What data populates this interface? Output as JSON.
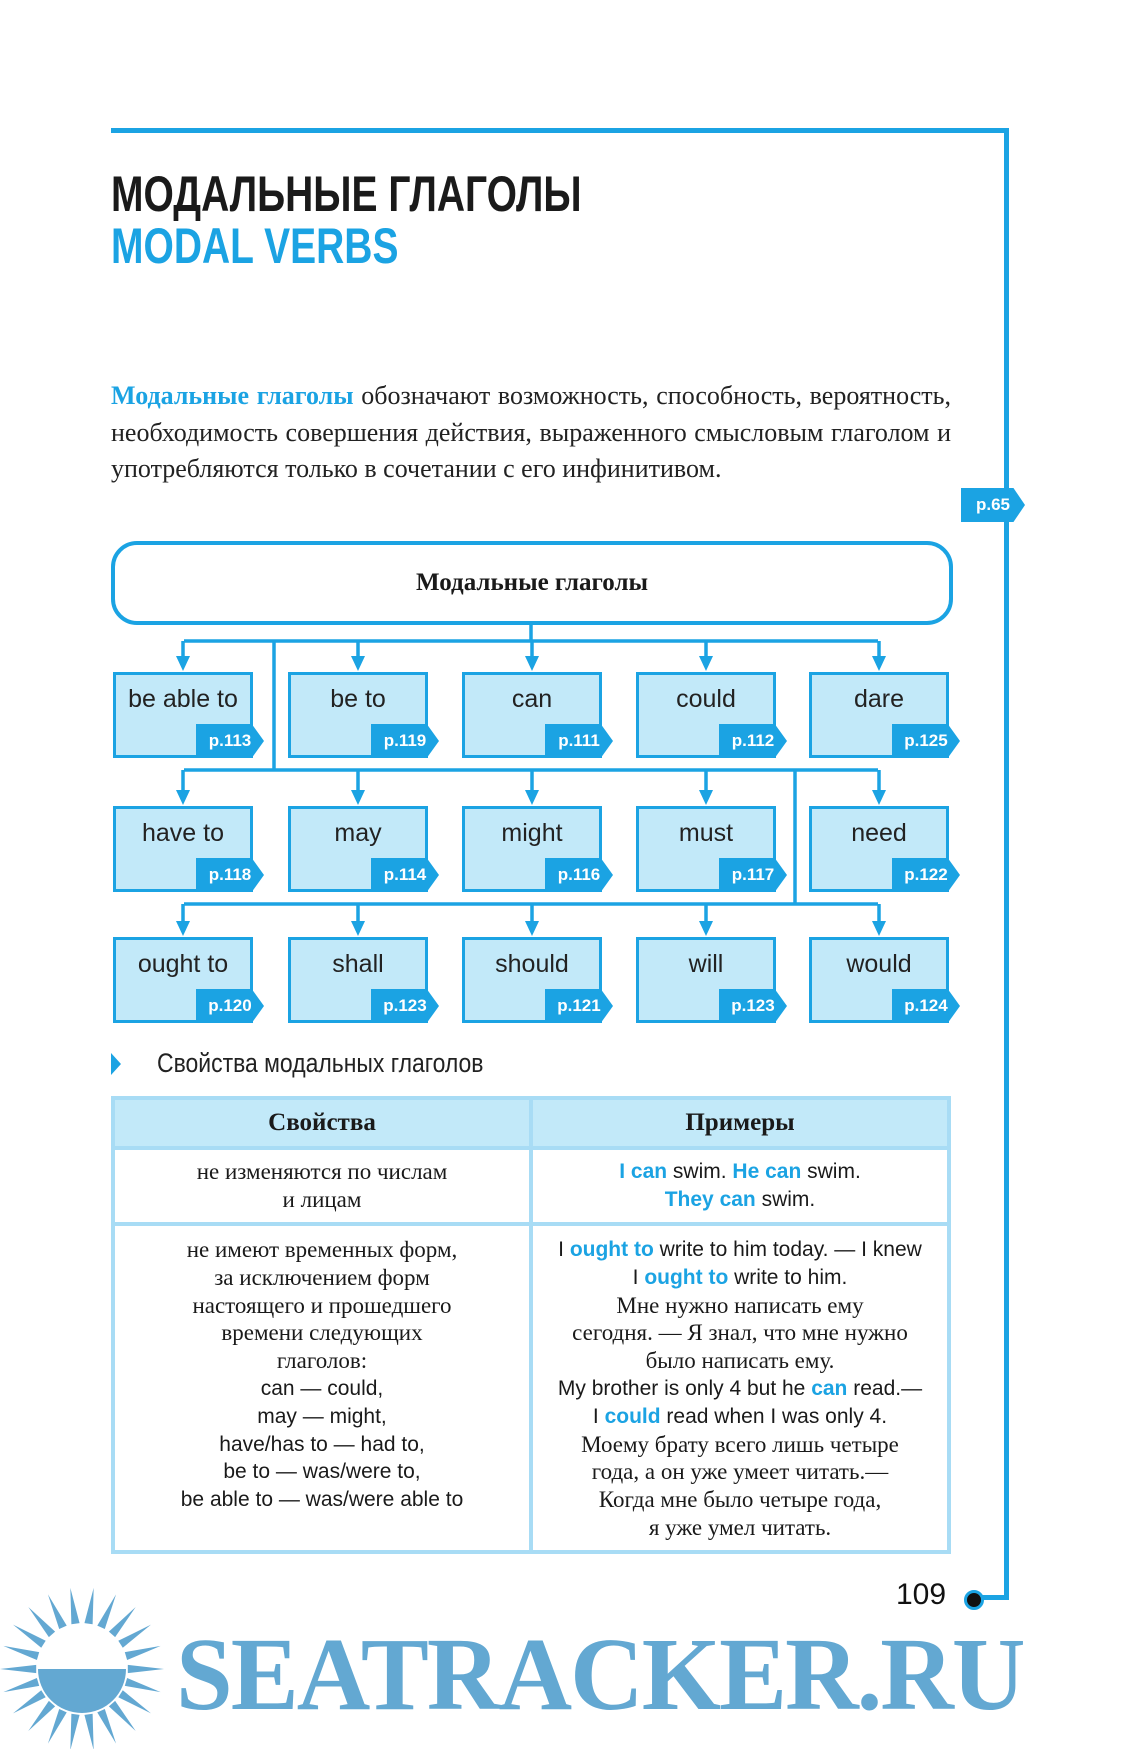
{
  "colors": {
    "accent": "#1ba3e3",
    "box_fill": "#c2e9f9",
    "table_border": "#a8dcf5",
    "watermark": "#63a8d2"
  },
  "title": {
    "ru": "МОДАЛЬНЫЕ ГЛАГОЛЫ",
    "en": "MODAL VERBS"
  },
  "intro": {
    "highlight": "Модальные глаголы",
    "text": " обозначают возможность, способность, вероятность, необходимость совершения действия, выраженного смысловым глаголом и употребляются только в сочетании с его инфинитивом.",
    "ref": "p.65"
  },
  "diagram": {
    "root": "Модальные глаголы",
    "rows": [
      [
        {
          "label": "be able to",
          "page": "p.113"
        },
        {
          "label": "be to",
          "page": "p.119"
        },
        {
          "label": "can",
          "page": "p.111"
        },
        {
          "label": "could",
          "page": "p.112"
        },
        {
          "label": "dare",
          "page": "p.125"
        }
      ],
      [
        {
          "label": "have to",
          "page": "p.118"
        },
        {
          "label": "may",
          "page": "p.114"
        },
        {
          "label": "might",
          "page": "p.116"
        },
        {
          "label": "must",
          "page": "p.117"
        },
        {
          "label": "need",
          "page": "p.122"
        }
      ],
      [
        {
          "label": "ought to",
          "page": "p.120"
        },
        {
          "label": "shall",
          "page": "p.123"
        },
        {
          "label": "should",
          "page": "p.121"
        },
        {
          "label": "will",
          "page": "p.123"
        },
        {
          "label": "would",
          "page": "p.124"
        }
      ]
    ]
  },
  "section": {
    "title": "Свойства модальных глаголов",
    "icon": "triangle-right-icon"
  },
  "table": {
    "headers": [
      "Свойства",
      "Примеры"
    ],
    "row1": {
      "property": [
        "не изменяются по числам",
        "и лицам"
      ],
      "ex1_b1": "I can",
      "ex1_t1": " swim. ",
      "ex1_b2": "He can",
      "ex1_t2": " swim.",
      "ex2_b1": "They can",
      "ex2_t1": " swim."
    },
    "row2": {
      "property_serif": [
        "не имеют временных форм,",
        "за исключением форм",
        "настоящего и прошедшего",
        "времени следующих",
        "глаголов:"
      ],
      "property_sans": [
        "can — could,",
        "may — might,",
        "have/has to — had to,",
        "be to — was/were to,",
        "be able to — was/were able to"
      ],
      "e1_a": "I ",
      "e1_b": "ought to",
      "e1_c": " write to him today. — I knew",
      "e2_a": "I ",
      "e2_b": "ought to",
      "e2_c": " write to him.",
      "ru1": [
        "Мне нужно написать ему",
        "сегодня. — Я знал, что мне нужно",
        "было написать ему."
      ],
      "e3_a": "My brother is only 4 but he ",
      "e3_b": "can",
      "e3_c": " read.—",
      "e4_a": "I ",
      "e4_b": "could",
      "e4_c": " read when I was only 4.",
      "ru2": [
        "Моему брату всего лишь четыре",
        "года, а он уже умеет читать.—",
        "Когда мне было четыре года,",
        "я уже умел читать."
      ]
    }
  },
  "page_number": "109",
  "watermark": {
    "text": "SEATRACKER.RU",
    "icon": "sun-icon"
  }
}
